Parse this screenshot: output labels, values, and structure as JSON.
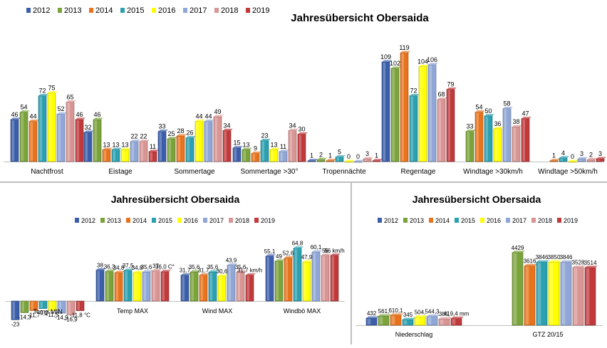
{
  "colors": [
    "#3b5ea9",
    "#7aa33a",
    "#e8731c",
    "#2aa0b0",
    "#ffff00",
    "#8fa6d6",
    "#d99594",
    "#c0393b"
  ],
  "chart_data": [
    {
      "type": "bar",
      "title": "Jahresübersicht Obersaida",
      "legend": "top-left",
      "series_names": [
        "2012",
        "2013",
        "2014",
        "2015",
        "2016",
        "2017",
        "2018",
        "2019"
      ],
      "categories": [
        "Nachtfrost",
        "Eistage",
        "Sommertage",
        "Sommertage >30°",
        "Tropennächte",
        "Regentage",
        "Windtage >30km/h",
        "Windtage >50km/h"
      ],
      "values": [
        [
          46,
          54,
          44,
          72,
          75,
          52,
          65,
          46
        ],
        [
          32,
          46,
          13,
          13,
          13,
          22,
          22,
          11
        ],
        [
          33,
          25,
          28,
          26,
          44,
          44,
          49,
          34
        ],
        [
          15,
          13,
          9,
          23,
          13,
          11,
          34,
          30
        ],
        [
          1,
          2,
          1,
          5,
          0,
          0,
          3,
          1
        ],
        [
          109,
          102,
          119,
          72,
          104,
          106,
          68,
          79
        ],
        [
          null,
          33,
          54,
          50,
          36,
          58,
          38,
          47
        ],
        [
          null,
          null,
          1,
          4,
          0,
          3,
          2,
          3
        ]
      ],
      "labels": [
        [
          "46",
          "54",
          "44",
          "72",
          "75",
          "52",
          "65",
          "46"
        ],
        [
          "32",
          "46",
          "13",
          "13",
          "13",
          "22",
          "22",
          "11"
        ],
        [
          "33",
          "25",
          "28",
          "26",
          "44",
          "44",
          "49",
          "34"
        ],
        [
          "15",
          "13",
          "9",
          "23",
          "13",
          "11",
          "34",
          "30"
        ],
        [
          "1",
          "2",
          "1",
          "5",
          "0",
          "0",
          "3",
          "1"
        ],
        [
          "109",
          "102",
          "119",
          "72",
          "104",
          "106",
          "68",
          "79"
        ],
        [
          "",
          "33",
          "54",
          "50",
          "36",
          "58",
          "38",
          "47"
        ],
        [
          "",
          "",
          "1",
          "4",
          "0",
          "3",
          "2",
          "3"
        ]
      ],
      "ylim": [
        0,
        130
      ]
    },
    {
      "type": "bar",
      "title": "Jahresübersicht Obersaida",
      "legend": "top",
      "series_names": [
        "2012",
        "2013",
        "2014",
        "2015",
        "2016",
        "2017",
        "2018",
        "2019"
      ],
      "categories": [
        "Temp MIN",
        "Temp MAX",
        "Wind MAX",
        "Windbö MAX"
      ],
      "values": [
        [
          -23,
          -14.3,
          -11.7,
          -9.2,
          -11.5,
          -14.9,
          -16.9,
          -11.8
        ],
        [
          38,
          36.3,
          34.8,
          37.5,
          34.8,
          35.6,
          37,
          36
        ],
        [
          31.7,
          35.6,
          31.7,
          35.6,
          30.6,
          43.9,
          35.6,
          31.7
        ],
        [
          55.1,
          49,
          52.6,
          64.8,
          47.9,
          60.1,
          56,
          56
        ]
      ],
      "labels": [
        [
          "-23",
          "-14,3",
          "-11,7",
          "-9,2",
          "-11,5",
          "-14,9",
          "-16,9",
          "-11,8 °C"
        ],
        [
          "38",
          "36,3",
          "34,8",
          "37,5",
          "34,8",
          "35,6",
          "37",
          "36,0 C°"
        ],
        [
          "31,7",
          "35,6",
          "31,7",
          "35,6",
          "30,6",
          "43,9",
          "35,6",
          "31,7 km/h"
        ],
        [
          "55,1",
          "49",
          "52,6",
          "64,8",
          "47,9",
          "60,1",
          "56",
          "56 km/h"
        ]
      ],
      "ylim": [
        -30,
        75
      ]
    },
    {
      "type": "bar",
      "title": "Jahresübersicht Obersaida",
      "legend": "top",
      "series_names": [
        "2012",
        "2013",
        "2014",
        "2015",
        "2016",
        "2017",
        "2018",
        "2019"
      ],
      "categories": [
        "Niederschlag",
        "GTZ 20/15"
      ],
      "values": [
        [
          432,
          561,
          610,
          345,
          504,
          544,
          385,
          419.4
        ],
        [
          null,
          4429,
          3616,
          3846,
          3850,
          3846,
          3528,
          3514
        ]
      ],
      "labels": [
        [
          "432",
          "561,",
          "610,1",
          "345",
          "504,",
          "544,3",
          "385,",
          "419,4 mm"
        ],
        [
          "",
          "4429",
          "3616",
          "3846",
          "3850",
          "3846",
          "3528",
          "3514"
        ]
      ],
      "ylim": [
        0,
        5200
      ]
    }
  ]
}
